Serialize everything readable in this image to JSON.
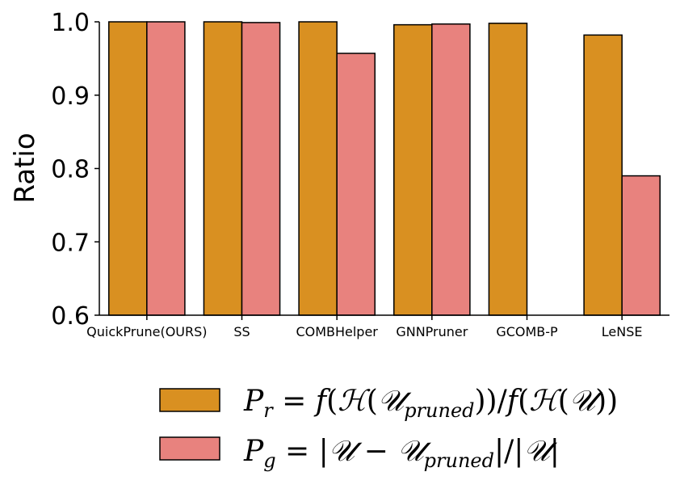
{
  "chart_data": {
    "type": "bar",
    "title": "",
    "xlabel": "",
    "ylabel": "Ratio",
    "ylim": [
      0.6,
      1.0
    ],
    "yticks": [
      "0.6",
      "0.7",
      "0.8",
      "0.9",
      "1.0"
    ],
    "categories": [
      "QuickPrune(OURS)",
      "SS",
      "COMBHelper",
      "GNNPruner",
      "GCOMB-P",
      "LeNSE"
    ],
    "series": [
      {
        "name": "P_r = f(H(U_pruned))/f(H(U))",
        "legend_label": "P_r = f(ℋ(𝒰_pruned))/f(ℋ(𝒰))",
        "color": "#d99021",
        "values": [
          1.0,
          1.0,
          1.0,
          0.996,
          0.998,
          0.982
        ]
      },
      {
        "name": "P_g = |U - U_pruned|/|U|",
        "legend_label": "P_g = |𝒰 − 𝒰_pruned|/|𝒰|",
        "color": "#e8827e",
        "values": [
          1.0,
          0.999,
          0.957,
          0.997,
          null,
          0.79
        ]
      }
    ],
    "legend_position": "bottom",
    "grid": false
  }
}
